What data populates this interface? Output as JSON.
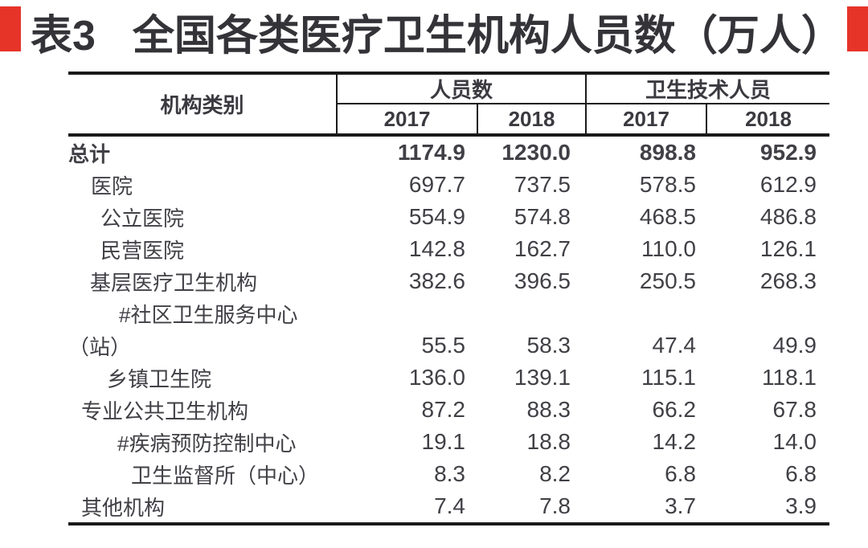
{
  "page": {
    "background": "#ffffff",
    "accent_red": "#e63429",
    "border_color": "#1a1a1a",
    "text_color": "#3d3d43"
  },
  "title": {
    "prefix": "表3",
    "text": "全国各类医疗卫生机构人员数（万人）"
  },
  "table": {
    "header": {
      "institution": "机构类别",
      "group_personnel": "人员数",
      "group_health_tech": "卫生技术人员",
      "years": [
        "2017",
        "2018",
        "2017",
        "2018"
      ]
    },
    "rows": [
      {
        "label": "总计",
        "indent": 0,
        "bold": true,
        "values": [
          "1174.9",
          "1230.0",
          "898.8",
          "952.9"
        ]
      },
      {
        "label": "医院",
        "indent": 28,
        "bold": false,
        "values": [
          "697.7",
          "737.5",
          "578.5",
          "612.9"
        ]
      },
      {
        "label": "公立医院",
        "indent": 40,
        "bold": false,
        "values": [
          "554.9",
          "574.8",
          "468.5",
          "486.8"
        ]
      },
      {
        "label": "民营医院",
        "indent": 40,
        "bold": false,
        "values": [
          "142.8",
          "162.7",
          "110.0",
          "126.1"
        ]
      },
      {
        "label": "基层医疗卫生机构",
        "indent": 27,
        "bold": false,
        "values": [
          "382.6",
          "396.5",
          "250.5",
          "268.3"
        ]
      },
      {
        "label": "#社区卫生服务中心",
        "indent": 63,
        "bold": false,
        "values": [
          "",
          "",
          "",
          ""
        ]
      },
      {
        "label": "（站）",
        "indent": 0,
        "bold": false,
        "values": [
          "55.5",
          "58.3",
          "47.4",
          "49.9"
        ]
      },
      {
        "label": "乡镇卫生院",
        "indent": 48,
        "bold": false,
        "values": [
          "136.0",
          "139.1",
          "115.1",
          "118.1"
        ]
      },
      {
        "label": "专业公共卫生机构",
        "indent": 16,
        "bold": false,
        "values": [
          "87.2",
          "88.3",
          "66.2",
          "67.8"
        ]
      },
      {
        "label": "#疾病预防控制中心",
        "indent": 61,
        "bold": false,
        "values": [
          "19.1",
          "18.8",
          "14.2",
          "14.0"
        ]
      },
      {
        "label": "卫生监督所（中心）",
        "indent": 78,
        "bold": false,
        "values": [
          "8.3",
          "8.2",
          "6.8",
          "6.8"
        ]
      },
      {
        "label": "其他机构",
        "indent": 16,
        "bold": false,
        "values": [
          "7.4",
          "7.8",
          "3.7",
          "3.9"
        ]
      }
    ]
  },
  "chart_data": {
    "type": "table",
    "title": "表3 全国各类医疗卫生机构人员数（万人）",
    "column_groups": [
      "人员数",
      "卫生技术人员"
    ],
    "columns": [
      "机构类别",
      "人员数 2017",
      "人员数 2018",
      "卫生技术人员 2017",
      "卫生技术人员 2018"
    ],
    "rows": [
      [
        "总计",
        1174.9,
        1230.0,
        898.8,
        952.9
      ],
      [
        "医院",
        697.7,
        737.5,
        578.5,
        612.9
      ],
      [
        "公立医院",
        554.9,
        574.8,
        468.5,
        486.8
      ],
      [
        "民营医院",
        142.8,
        162.7,
        110.0,
        126.1
      ],
      [
        "基层医疗卫生机构",
        382.6,
        396.5,
        250.5,
        268.3
      ],
      [
        "#社区卫生服务中心（站）",
        55.5,
        58.3,
        47.4,
        49.9
      ],
      [
        "乡镇卫生院",
        136.0,
        139.1,
        115.1,
        118.1
      ],
      [
        "专业公共卫生机构",
        87.2,
        88.3,
        66.2,
        67.8
      ],
      [
        "#疾病预防控制中心",
        19.1,
        18.8,
        14.2,
        14.0
      ],
      [
        "卫生监督所（中心）",
        8.3,
        8.2,
        6.8,
        6.8
      ],
      [
        "其他机构",
        7.4,
        7.8,
        3.7,
        3.9
      ]
    ]
  }
}
